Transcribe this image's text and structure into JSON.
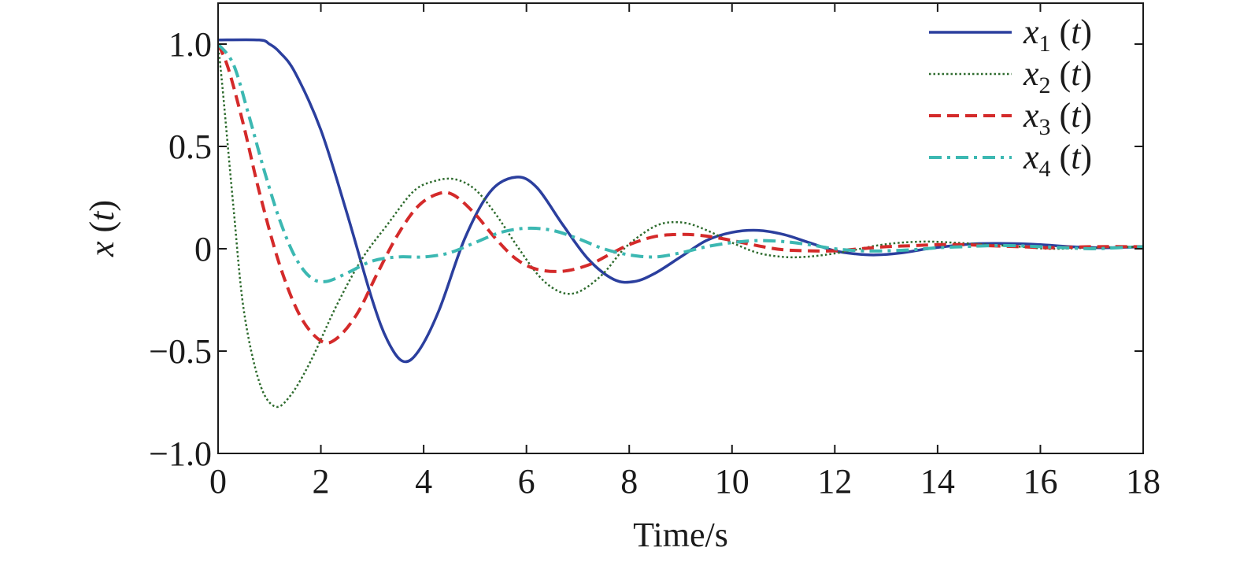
{
  "chart_data": {
    "type": "line",
    "title": "",
    "xlabel": "Time/s",
    "ylabel": {
      "var": "x",
      "arg": "t"
    },
    "xlim": [
      0,
      18
    ],
    "ylim": [
      -1.0,
      1.2
    ],
    "xticks": [
      0,
      2,
      4,
      6,
      8,
      10,
      12,
      14,
      16,
      18
    ],
    "xtick_labels": [
      "0",
      "2",
      "4",
      "6",
      "8",
      "10",
      "12",
      "14",
      "16",
      "18"
    ],
    "yticks": [
      -1.0,
      -0.5,
      0,
      0.5,
      1.0
    ],
    "ytick_labels": [
      "−1.0",
      "−0.5",
      "0",
      "0.5",
      "1.0"
    ],
    "grid": false,
    "legend_position": "top-right",
    "series": [
      {
        "name": "x1 (t)",
        "legend": {
          "var": "x",
          "sub": "1",
          "arg": "t"
        },
        "color": "#2b3f9e",
        "style": "solid",
        "x": [
          0,
          0.8,
          1.0,
          1.2,
          1.5,
          2.0,
          2.5,
          3.0,
          3.3,
          3.6,
          3.9,
          4.3,
          4.8,
          5.3,
          5.8,
          6.2,
          6.7,
          7.2,
          7.7,
          8.1,
          8.5,
          9.0,
          9.5,
          10.0,
          10.5,
          11.0,
          11.5,
          12.0,
          12.4,
          12.8,
          13.3,
          13.8,
          14.3,
          14.8,
          15.5,
          16.0,
          16.6,
          17.2,
          18.0
        ],
        "y": [
          1.02,
          1.02,
          1.0,
          0.96,
          0.86,
          0.58,
          0.18,
          -0.25,
          -0.45,
          -0.55,
          -0.5,
          -0.3,
          0.05,
          0.28,
          0.35,
          0.3,
          0.12,
          -0.05,
          -0.15,
          -0.16,
          -0.12,
          -0.04,
          0.04,
          0.08,
          0.09,
          0.07,
          0.03,
          -0.01,
          -0.025,
          -0.03,
          -0.02,
          0.0,
          0.015,
          0.025,
          0.025,
          0.02,
          0.01,
          0.005,
          0.01
        ]
      },
      {
        "name": "x2 (t)",
        "legend": {
          "var": "x",
          "sub": "2",
          "arg": "t"
        },
        "color": "#2e6b2e",
        "style": "dotted",
        "x": [
          0,
          0.1,
          0.3,
          0.5,
          0.8,
          1.1,
          1.4,
          1.8,
          2.3,
          2.8,
          3.3,
          3.8,
          4.2,
          4.6,
          5.0,
          5.4,
          5.8,
          6.2,
          6.5,
          6.8,
          7.1,
          7.5,
          7.9,
          8.3,
          8.6,
          8.9,
          9.2,
          9.6,
          10.0,
          10.5,
          11.0,
          11.4,
          11.8,
          12.3,
          12.8,
          13.3,
          13.8,
          14.3,
          15.0,
          15.6,
          16.2,
          17.0,
          18.0
        ],
        "y": [
          1.0,
          0.75,
          0.2,
          -0.3,
          -0.65,
          -0.77,
          -0.72,
          -0.55,
          -0.28,
          -0.05,
          0.12,
          0.28,
          0.33,
          0.34,
          0.29,
          0.17,
          0.02,
          -0.12,
          -0.19,
          -0.22,
          -0.2,
          -0.12,
          0.0,
          0.08,
          0.12,
          0.13,
          0.12,
          0.08,
          0.03,
          -0.02,
          -0.04,
          -0.04,
          -0.03,
          -0.01,
          0.015,
          0.03,
          0.035,
          0.03,
          0.02,
          0.01,
          0.0,
          0.005,
          0.01
        ]
      },
      {
        "name": "x3 (t)",
        "legend": {
          "var": "x",
          "sub": "3",
          "arg": "t"
        },
        "color": "#d42a2a",
        "style": "dashed",
        "x": [
          0,
          0.2,
          0.5,
          0.8,
          1.2,
          1.6,
          2.0,
          2.3,
          2.7,
          3.1,
          3.5,
          3.9,
          4.3,
          4.6,
          5.0,
          5.4,
          5.8,
          6.2,
          6.7,
          7.2,
          7.6,
          8.0,
          8.5,
          9.0,
          9.4,
          9.8,
          10.2,
          10.6,
          11.0,
          11.5,
          12.0,
          12.5,
          13.0,
          13.5,
          14.0,
          14.5,
          15.0,
          15.6,
          16.2,
          17.0,
          18.0
        ],
        "y": [
          1.0,
          0.88,
          0.6,
          0.28,
          -0.08,
          -0.33,
          -0.45,
          -0.44,
          -0.32,
          -0.12,
          0.07,
          0.21,
          0.27,
          0.26,
          0.17,
          0.05,
          -0.05,
          -0.1,
          -0.11,
          -0.08,
          -0.03,
          0.02,
          0.06,
          0.07,
          0.065,
          0.05,
          0.03,
          0.01,
          -0.005,
          -0.01,
          -0.01,
          0.0,
          0.01,
          0.015,
          0.02,
          0.02,
          0.015,
          0.01,
          0.005,
          0.01,
          0.01
        ]
      },
      {
        "name": "x4 (t)",
        "legend": {
          "var": "x",
          "sub": "4",
          "arg": "t"
        },
        "color": "#3cb8b2",
        "style": "dashdot",
        "x": [
          0,
          0.3,
          0.6,
          0.9,
          1.2,
          1.5,
          1.8,
          2.1,
          2.5,
          3.0,
          3.5,
          4.0,
          4.5,
          5.0,
          5.5,
          6.0,
          6.5,
          7.0,
          7.5,
          8.0,
          8.5,
          9.0,
          9.5,
          10.0,
          10.5,
          11.0,
          11.5,
          12.0,
          12.5,
          13.0,
          13.5,
          14.0,
          14.5,
          15.0,
          15.5,
          16.0,
          16.5,
          17.0,
          17.5,
          18.0
        ],
        "y": [
          1.0,
          0.9,
          0.65,
          0.38,
          0.14,
          -0.04,
          -0.14,
          -0.16,
          -0.12,
          -0.06,
          -0.04,
          -0.04,
          -0.02,
          0.03,
          0.08,
          0.1,
          0.09,
          0.05,
          0.0,
          -0.03,
          -0.04,
          -0.02,
          0.01,
          0.03,
          0.04,
          0.035,
          0.02,
          0.0,
          -0.01,
          -0.01,
          -0.005,
          0.005,
          0.01,
          0.015,
          0.015,
          0.01,
          0.005,
          0.0,
          0.005,
          0.01
        ]
      }
    ]
  }
}
